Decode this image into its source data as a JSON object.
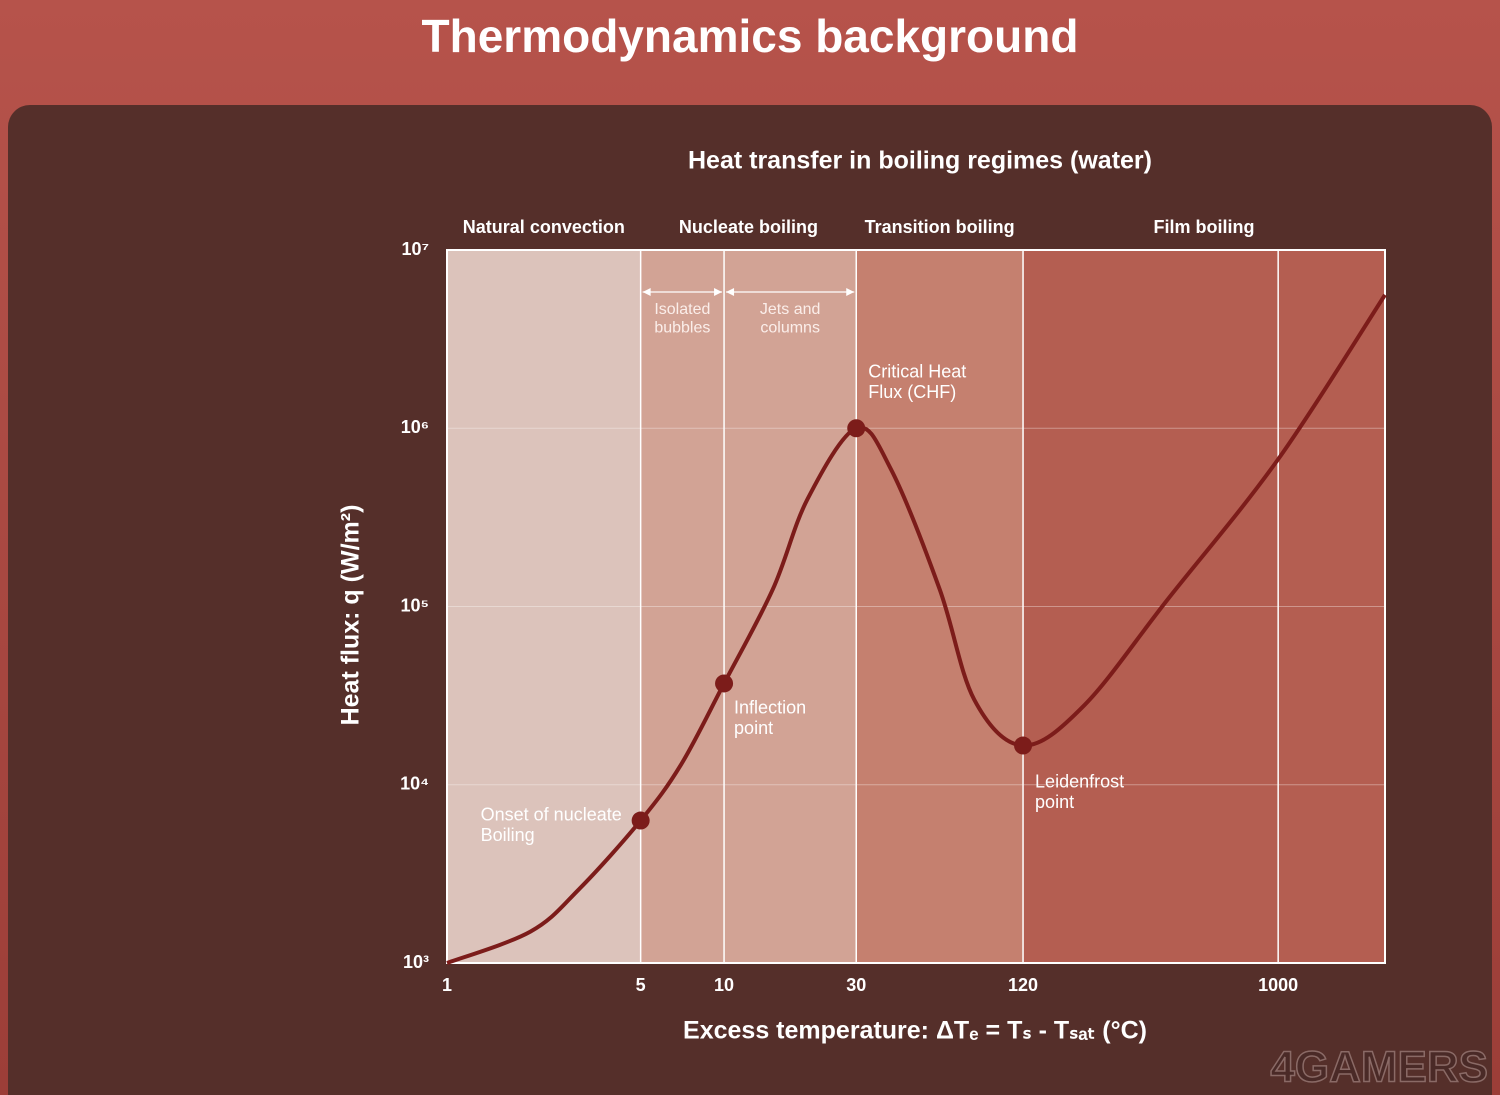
{
  "slide_title": "Thermodynamics background",
  "watermark": "4GAMERS",
  "chart_data": {
    "type": "line",
    "title": "Heat transfer in boiling regimes (water)",
    "xlabel": "Excess temperature: ΔTₑ = Tₛ - Tₛₐₜ   (°C)",
    "ylabel": "Heat flux: q (W/m²)",
    "xscale": "log",
    "yscale": "log",
    "xlim": [
      1,
      2430
    ],
    "ylim": [
      1000,
      10000000
    ],
    "xticks": [
      1,
      5,
      10,
      30,
      120,
      1000
    ],
    "yticks": [
      {
        "value": 1000,
        "label": "10³"
      },
      {
        "value": 10000,
        "label": "10⁴"
      },
      {
        "value": 100000,
        "label": "10⁵"
      },
      {
        "value": 1000000,
        "label": "10⁶"
      },
      {
        "value": 10000000,
        "label": "10⁷"
      }
    ],
    "grid": true,
    "regions": [
      {
        "name": "Natural convection",
        "from": 1,
        "to": 5,
        "color": "#dcc3bb"
      },
      {
        "name": "Nucleate boiling",
        "from": 5,
        "to": 30,
        "color": "#d2a395"
      },
      {
        "name": "Transition boiling",
        "from": 30,
        "to": 120,
        "color": "#c5806f"
      },
      {
        "name": "Film boiling",
        "from": 120,
        "to": 2430,
        "color": "#b45e51"
      }
    ],
    "subregions": [
      {
        "name": "Isolated\nbubbles",
        "from": 5,
        "to": 10
      },
      {
        "name": "Jets and\ncolumns",
        "from": 10,
        "to": 30
      }
    ],
    "series": [
      {
        "color": "#7c1c1a",
        "x": [
          1,
          2,
          3,
          5,
          7,
          10,
          15,
          20,
          30,
          40,
          60,
          80,
          120,
          200,
          400,
          1000,
          2430
        ],
        "values": [
          1000,
          1500,
          2600,
          6300,
          13000,
          37000,
          125000,
          400000,
          1000000,
          590000,
          125000,
          30000,
          16600,
          28000,
          110000,
          670000,
          5600000
        ]
      }
    ],
    "points": [
      {
        "label": "Onset of nucleate\nBoiling",
        "x": 5,
        "y": 6300
      },
      {
        "label": "Inflection\npoint",
        "x": 10,
        "y": 37000
      },
      {
        "label": "Critical Heat\nFlux (CHF)",
        "x": 30,
        "y": 1000000
      },
      {
        "label": "Leidenfrost\npoint",
        "x": 120,
        "y": 16600
      }
    ]
  }
}
